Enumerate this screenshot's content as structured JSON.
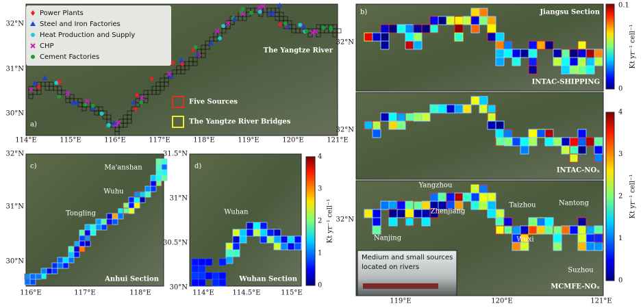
{
  "panels": {
    "a": {
      "label": "a)",
      "title": "The Yangtze River",
      "legend": [
        "Power Plants",
        "Steel and Iron Factories",
        "Heat Production and Supply",
        "CHP",
        "Cement Factories"
      ],
      "box_legend": [
        "Five Sources",
        "The Yangtze River Bridges"
      ],
      "xticks": [
        "114°E",
        "115°E",
        "116°E",
        "117°E",
        "118°E",
        "119°E",
        "120°E",
        "121°E"
      ],
      "yticks": [
        "32°N",
        "31°N",
        "30°N"
      ]
    },
    "b": {
      "label": "b)",
      "sections": [
        "Jiangsu Section",
        "INTAC-SHIPPING",
        "INTAC-NOₓ",
        "MCMFE-NOₓ"
      ],
      "cities": [
        "Yangzhou",
        "Zhenjiang",
        "Taizhou",
        "Nantong",
        "Nanjing",
        "Wuxi",
        "Suzhou"
      ],
      "inset": [
        "Medium and small sources",
        "located on rivers"
      ],
      "xticks": [
        "119°E",
        "120°E",
        "121°E"
      ],
      "yticks": [
        "32°N",
        "32°N",
        "32°N"
      ],
      "colorbar_top": {
        "ticks": [
          "0.1",
          "0"
        ],
        "label": "Kt yr⁻¹ cell⁻¹"
      },
      "colorbar_bottom": {
        "ticks": [
          "4",
          "3",
          "2",
          "1",
          "0"
        ],
        "label": "Kt yr⁻¹ cell⁻¹"
      }
    },
    "c": {
      "label": "c)",
      "title": "Anhui Section",
      "cities": [
        "Ma'anshan",
        "Wuhu",
        "Tongling"
      ],
      "xticks": [
        "116°E",
        "117°E",
        "118°E"
      ],
      "yticks": [
        "32°N",
        "31°N",
        "30°N"
      ]
    },
    "d": {
      "label": "d)",
      "title": "Wuhan Section",
      "cities": [
        "Wuhan"
      ],
      "xticks": [
        "114°E",
        "114.5°E",
        "115°E"
      ],
      "yticks": [
        "31.5°N",
        "31°N",
        "30.5°N",
        "30°N"
      ],
      "colorbar": {
        "ticks": [
          "4",
          "3",
          "2",
          "1",
          "0"
        ],
        "label": "Kt yr⁻¹ cell⁻¹"
      }
    }
  }
}
